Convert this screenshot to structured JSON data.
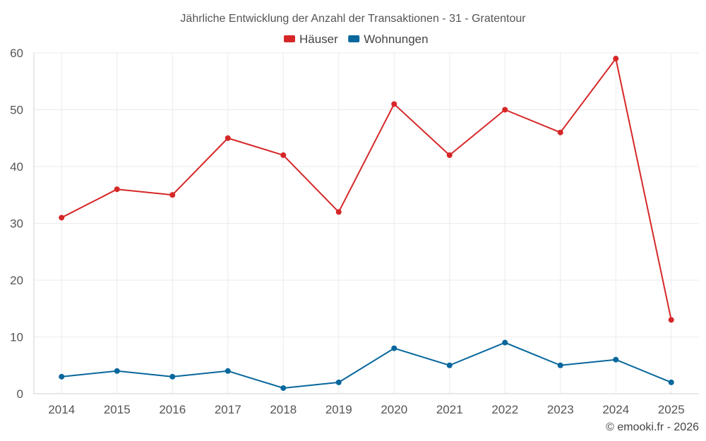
{
  "chart_data": {
    "type": "line",
    "title": "Jährliche Entwicklung der Anzahl der Transaktionen - 31 - Gratentour",
    "xlabel": "",
    "ylabel": "",
    "categories": [
      "2014",
      "2015",
      "2016",
      "2017",
      "2018",
      "2019",
      "2020",
      "2021",
      "2022",
      "2023",
      "2024",
      "2025"
    ],
    "ylim": [
      0,
      60
    ],
    "yticks": [
      0,
      10,
      20,
      30,
      40,
      50,
      60
    ],
    "grid": true,
    "legend_position": "top-center",
    "series": [
      {
        "name": "Häuser",
        "color": "#d62728",
        "values": [
          31,
          36,
          35,
          45,
          42,
          32,
          51,
          42,
          50,
          46,
          59,
          13
        ]
      },
      {
        "name": "Wohnungen",
        "color": "#08679c",
        "values": [
          3,
          4,
          3,
          4,
          1,
          2,
          8,
          5,
          9,
          5,
          6,
          2
        ]
      }
    ]
  },
  "credit": "© emooki.fr - 2026"
}
